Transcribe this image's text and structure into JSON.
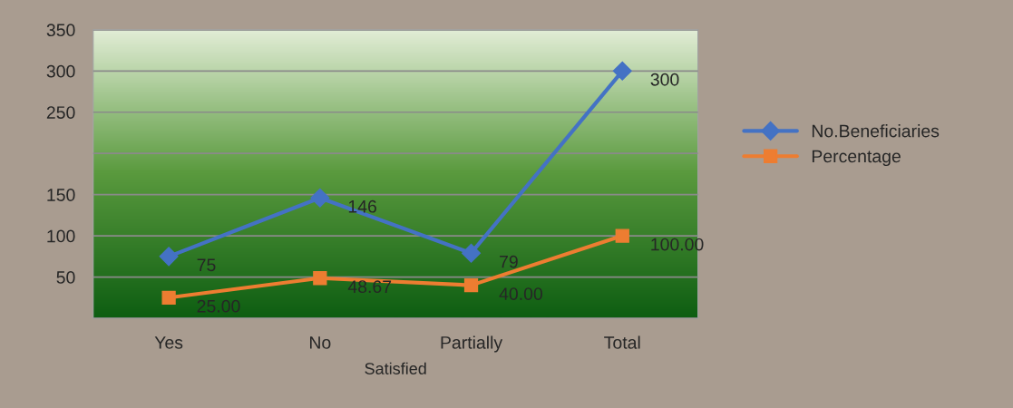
{
  "chart_data": {
    "type": "line",
    "xlabel": "Satisfied",
    "categories": [
      "Yes",
      "No",
      "Partially",
      "Total"
    ],
    "series": [
      {
        "name": "No.Beneficiaries",
        "color": "#4472c4",
        "marker": "diamond",
        "values": [
          75,
          146,
          79,
          300
        ]
      },
      {
        "name": "Percentage",
        "color": "#ed7d31",
        "marker": "square",
        "values": [
          25.0,
          48.67,
          40.0,
          100.0
        ],
        "value_labels": [
          "25.00",
          "48.67",
          "40.00",
          "100.00"
        ]
      }
    ],
    "ylim": [
      0,
      350
    ],
    "yticks": [
      {
        "value": 0,
        "label": null
      },
      50,
      100,
      150,
      {
        "value": 200,
        "label": null
      },
      250,
      300,
      350
    ],
    "grid": "y",
    "legend": "right",
    "data_labels": true
  }
}
